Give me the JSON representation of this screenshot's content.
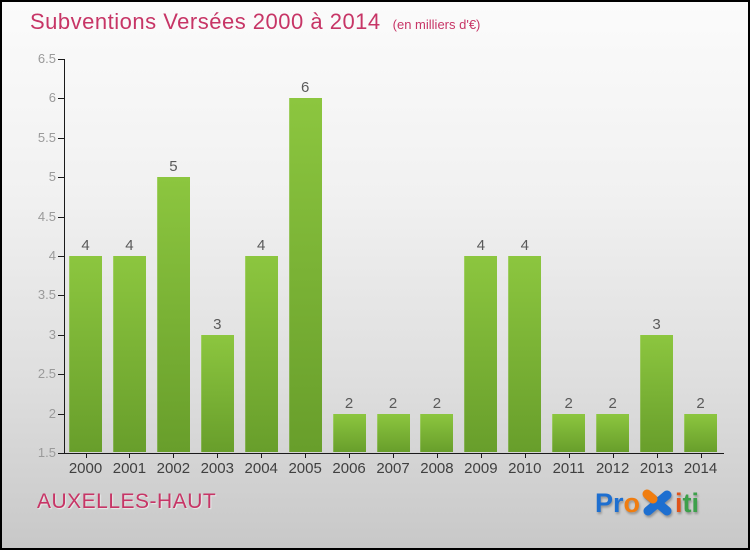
{
  "header": {
    "title": "Subventions Versées 2000 à 2014",
    "subtitle": "(en milliers d'€)",
    "title_color": "#c73566"
  },
  "chart_data": {
    "type": "bar",
    "title": "Subventions Versées 2000 à 2014",
    "subtitle": "(en milliers d'€)",
    "categories": [
      "2000",
      "2001",
      "2002",
      "2003",
      "2004",
      "2005",
      "2006",
      "2007",
      "2008",
      "2009",
      "2010",
      "2011",
      "2012",
      "2013",
      "2014"
    ],
    "values": [
      4,
      4,
      5,
      3,
      4,
      6,
      2,
      2,
      2,
      4,
      4,
      2,
      2,
      3,
      2
    ],
    "ylabel": "",
    "xlabel": "",
    "ylim": [
      1.5,
      6.5
    ],
    "ytick_step": 0.5,
    "ytick_labels": [
      "1.5",
      "2",
      "2.5",
      "3",
      "3.5",
      "4",
      "4.5",
      "5",
      "5.5",
      "6",
      "6.5"
    ],
    "grid": false,
    "legend": false,
    "bar_color_top": "#8cc63f",
    "bar_color_bottom": "#689e2b"
  },
  "footer": {
    "place_label": "AUXELLES-HAUT",
    "place_color": "#c73566",
    "logo": {
      "text": "Proxiti",
      "letters": [
        {
          "ch": "P",
          "color": "#1e6fd0"
        },
        {
          "ch": "r",
          "color": "#1e6fd0"
        },
        {
          "ch": "o",
          "color": "#f07d10"
        },
        {
          "ch": "x",
          "color": "#1e6fd0",
          "accent": "#f07d10"
        },
        {
          "ch": "i",
          "color": "#e0531a"
        },
        {
          "ch": "t",
          "color": "#3da04b"
        },
        {
          "ch": "i",
          "color": "#3da04b"
        }
      ]
    }
  }
}
